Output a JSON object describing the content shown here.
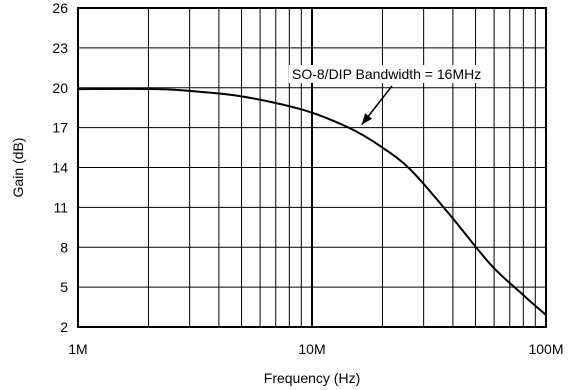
{
  "chart_data": {
    "type": "line",
    "title": "",
    "xlabel": "Frequency (Hz)",
    "ylabel": "Gain (dB)",
    "x_scale": "log",
    "xlim": [
      1000000,
      100000000
    ],
    "ylim": [
      2,
      26
    ],
    "grid": true,
    "x_ticks": [
      {
        "value": 1000000,
        "label": "1M"
      },
      {
        "value": 10000000,
        "label": "10M"
      },
      {
        "value": 100000000,
        "label": "100M"
      }
    ],
    "y_ticks": [
      {
        "value": 2,
        "label": "2"
      },
      {
        "value": 5,
        "label": "5"
      },
      {
        "value": 8,
        "label": "8"
      },
      {
        "value": 11,
        "label": "11"
      },
      {
        "value": 14,
        "label": "14"
      },
      {
        "value": 17,
        "label": "17"
      },
      {
        "value": 20,
        "label": "20"
      },
      {
        "value": 23,
        "label": "23"
      },
      {
        "value": 26,
        "label": "26"
      }
    ],
    "series": [
      {
        "x": [
          1000000,
          2200000,
          3300000,
          4800000,
          6800000,
          9300000,
          12000000,
          15500000,
          20000000,
          26500000,
          39000000,
          58000000,
          80000000,
          100000000
        ],
        "y": [
          19.9,
          19.9,
          19.7,
          19.4,
          18.9,
          18.3,
          17.6,
          16.7,
          15.5,
          13.8,
          10.4,
          6.7,
          4.4,
          2.9
        ]
      }
    ],
    "annotations": [
      {
        "text": "SO-8/DIP Bandwidth = 16MHz",
        "x": 16000000,
        "y": 17.0
      }
    ],
    "colors": {
      "line": "#000000",
      "grid": "#000000",
      "background": "#ffffff"
    }
  }
}
